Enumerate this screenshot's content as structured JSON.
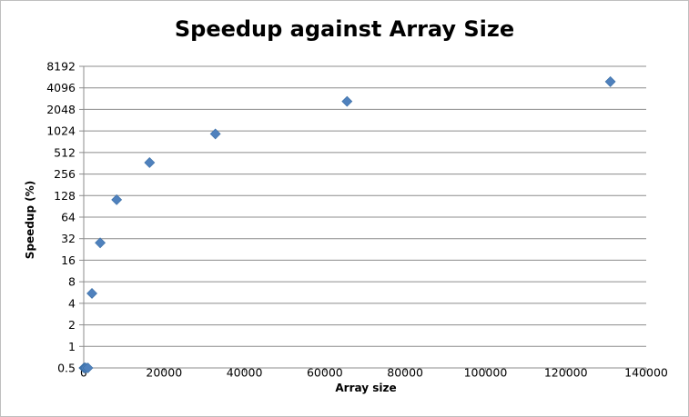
{
  "chart_data": {
    "type": "scatter",
    "title": "Speedup against Array Size",
    "xlabel": "Array size",
    "ylabel": "Speedup (%)",
    "xlim": [
      0,
      140000
    ],
    "xticks": [
      0,
      20000,
      40000,
      60000,
      80000,
      100000,
      120000,
      140000
    ],
    "yscale": "log2",
    "ylim": [
      0.5,
      8192
    ],
    "yticks": [
      0.5,
      1,
      2,
      4,
      8,
      16,
      32,
      64,
      128,
      256,
      512,
      1024,
      2048,
      4096,
      8192
    ],
    "grid": "horizontal",
    "marker": "diamond",
    "color": "#4f81bd",
    "points": [
      {
        "x": 64,
        "y": 0.5
      },
      {
        "x": 128,
        "y": 0.5
      },
      {
        "x": 256,
        "y": 0.5
      },
      {
        "x": 512,
        "y": 0.5
      },
      {
        "x": 1024,
        "y": 0.5
      },
      {
        "x": 2048,
        "y": 5.5
      },
      {
        "x": 4096,
        "y": 28
      },
      {
        "x": 8192,
        "y": 112
      },
      {
        "x": 16384,
        "y": 370
      },
      {
        "x": 32768,
        "y": 930
      },
      {
        "x": 65536,
        "y": 2650
      },
      {
        "x": 131072,
        "y": 5000
      }
    ]
  }
}
